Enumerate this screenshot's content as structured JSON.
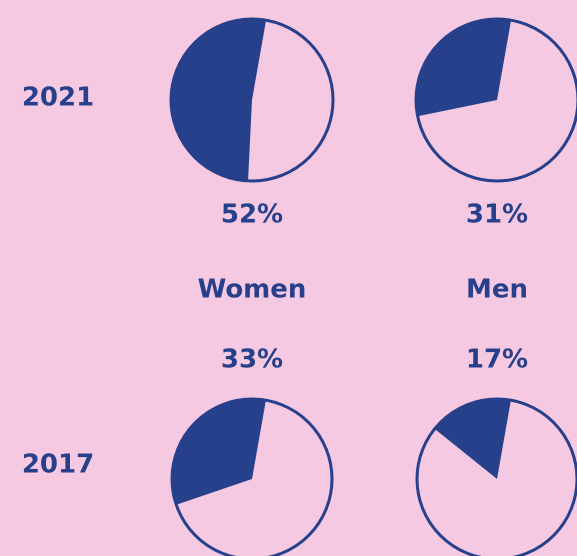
{
  "chart_data": {
    "type": "pie",
    "categories": [
      "Women",
      "Men"
    ],
    "series": [
      {
        "name": "2021",
        "values": [
          52,
          31
        ],
        "value_labels": [
          "52%",
          "31%"
        ]
      },
      {
        "name": "2017",
        "values": [
          33,
          17
        ],
        "value_labels": [
          "33%",
          "17%"
        ]
      }
    ],
    "color": "#27408b"
  }
}
